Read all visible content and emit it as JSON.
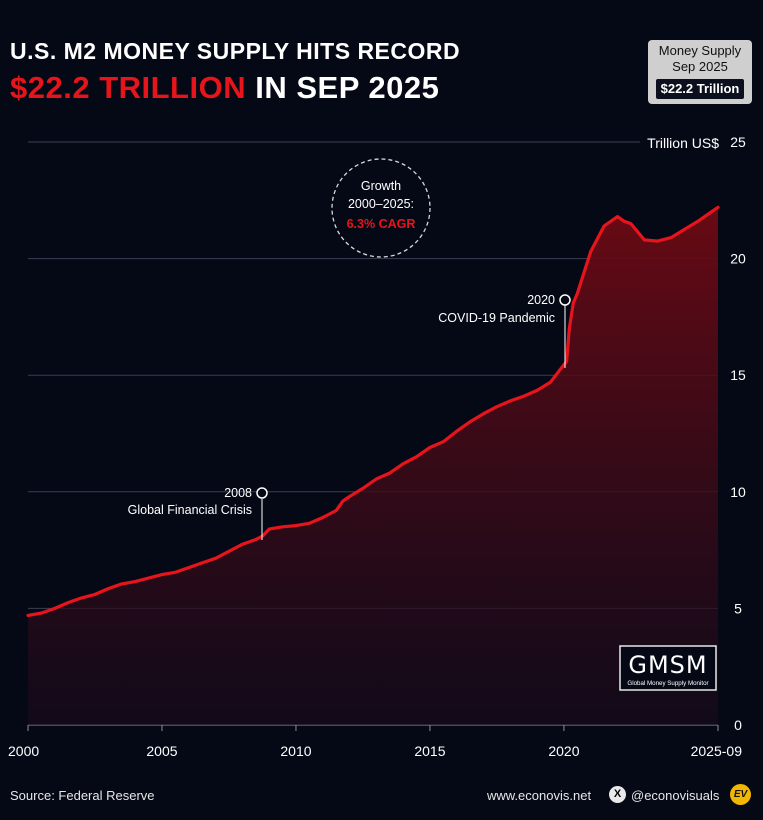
{
  "header": {
    "title_line1": "U.S. M2 MONEY SUPPLY HITS RECORD",
    "title_highlight": "$22.2 TRILLION",
    "title_rest": " IN SEP 2025"
  },
  "badge": {
    "line1": "Money Supply",
    "line2": "Sep 2025",
    "value": "$22.2 Trillion"
  },
  "footer": {
    "source": "Source: Federal Reserve",
    "website": "www.econovis.net",
    "handle": "@econovisuals",
    "x_icon": "X",
    "logo": "EV"
  },
  "annotations": {
    "growth": {
      "line1": "Growth",
      "line2": "2000–2025:",
      "line3": "6.3% CAGR"
    },
    "gfc": {
      "year": "2008",
      "label": "Global Financial Crisis"
    },
    "covid": {
      "year": "2020",
      "label": "COVID-19 Pandemic"
    }
  },
  "gmsm": {
    "big": "GMSM",
    "small": "Global Money Supply Monitor"
  },
  "colors": {
    "accent": "#e8141c",
    "background": "#050915",
    "grid": "#3a3f52"
  },
  "chart_data": {
    "type": "area",
    "ylabel": "Trillion US$",
    "ylim": [
      0,
      25
    ],
    "xlim": [
      2000,
      2025.75
    ],
    "y_ticks": [
      "0",
      "5",
      "10",
      "15",
      "20",
      "25"
    ],
    "x_tick_labels": [
      "2000",
      "2005",
      "2010",
      "2015",
      "2020",
      "2025-09"
    ],
    "x_tick_positions": [
      2000,
      2005,
      2010,
      2015,
      2020,
      2025.75
    ],
    "grid": true,
    "series": [
      {
        "x": [
          2000.0,
          2000.5,
          2001.0,
          2001.5,
          2002.0,
          2002.5,
          2003.0,
          2003.5,
          2004.0,
          2004.5,
          2005.0,
          2005.5,
          2006.0,
          2006.5,
          2007.0,
          2007.5,
          2008.0,
          2008.5,
          2008.75,
          2009.0,
          2009.5,
          2010.0,
          2010.5,
          2011.0,
          2011.5,
          2011.75,
          2012.0,
          2012.5,
          2013.0,
          2013.5,
          2014.0,
          2014.5,
          2015.0,
          2015.5,
          2016.0,
          2016.5,
          2017.0,
          2017.5,
          2018.0,
          2018.5,
          2019.0,
          2019.5,
          2020.0,
          2020.1,
          2020.2,
          2020.35,
          2020.5,
          2021.0,
          2021.5,
          2022.0,
          2022.25,
          2022.5,
          2022.75,
          2023.0,
          2023.5,
          2024.0,
          2024.5,
          2025.0,
          2025.5,
          2025.75
        ],
        "values": [
          4.7,
          4.8,
          5.0,
          5.25,
          5.45,
          5.6,
          5.85,
          6.05,
          6.15,
          6.3,
          6.45,
          6.55,
          6.75,
          6.95,
          7.15,
          7.45,
          7.75,
          7.95,
          8.1,
          8.4,
          8.5,
          8.55,
          8.65,
          8.9,
          9.2,
          9.6,
          9.8,
          10.15,
          10.55,
          10.8,
          11.2,
          11.5,
          11.9,
          12.15,
          12.6,
          13.0,
          13.35,
          13.65,
          13.9,
          14.1,
          14.35,
          14.7,
          15.45,
          15.6,
          17.0,
          18.1,
          18.5,
          20.3,
          21.4,
          21.8,
          21.6,
          21.5,
          21.15,
          20.8,
          20.75,
          20.9,
          21.25,
          21.6,
          22.0,
          22.2
        ]
      }
    ]
  }
}
